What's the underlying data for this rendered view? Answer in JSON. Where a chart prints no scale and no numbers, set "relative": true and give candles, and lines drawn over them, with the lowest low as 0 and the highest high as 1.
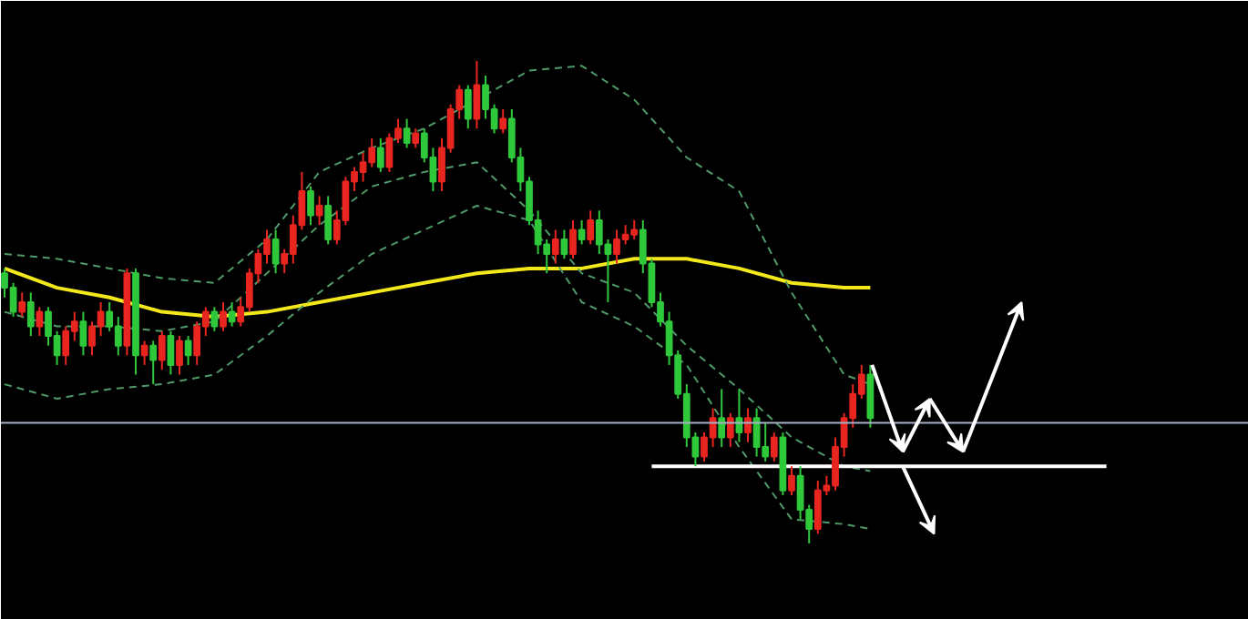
{
  "chart_data": {
    "type": "candlestick",
    "relative": true,
    "grid": false,
    "categories": [
      null,
      null,
      null,
      null,
      null,
      null,
      null,
      null,
      null,
      null,
      null,
      null,
      null,
      null,
      null,
      null,
      null,
      null,
      null,
      null,
      null,
      null,
      null,
      null,
      null,
      null,
      null,
      null,
      null,
      null,
      null,
      null,
      null,
      null,
      null,
      null,
      null,
      null,
      null,
      null,
      null,
      null,
      null,
      null,
      null,
      null,
      null,
      null,
      null,
      null,
      null,
      null,
      null,
      null,
      null,
      null,
      null,
      null,
      null,
      null,
      null,
      null,
      null,
      null,
      null,
      null,
      null,
      null,
      null,
      null,
      null,
      null,
      null,
      null,
      null,
      null,
      null,
      null,
      null,
      null,
      null,
      null,
      null,
      null,
      null,
      null,
      null,
      null,
      null,
      null,
      null,
      null,
      null,
      null,
      null,
      null,
      null,
      null,
      null,
      null,
      null,
      null,
      null,
      null,
      null,
      null,
      null,
      null,
      null,
      null,
      null,
      null,
      null,
      null,
      null,
      null,
      null,
      null,
      null,
      null,
      null,
      null,
      null,
      null,
      null,
      null,
      null,
      null,
      null,
      null,
      null,
      null,
      null,
      null,
      null,
      null,
      null,
      null,
      null,
      null,
      null,
      null,
      null
    ],
    "ohlc": [
      [
        0.56,
        0.57,
        0.51,
        0.53
      ],
      [
        0.53,
        0.54,
        0.47,
        0.48
      ],
      [
        0.48,
        0.52,
        0.47,
        0.5
      ],
      [
        0.5,
        0.52,
        0.43,
        0.45
      ],
      [
        0.45,
        0.49,
        0.43,
        0.48
      ],
      [
        0.48,
        0.49,
        0.41,
        0.43
      ],
      [
        0.43,
        0.44,
        0.37,
        0.39
      ],
      [
        0.39,
        0.45,
        0.37,
        0.44
      ],
      [
        0.44,
        0.48,
        0.42,
        0.46
      ],
      [
        0.46,
        0.48,
        0.39,
        0.41
      ],
      [
        0.41,
        0.46,
        0.39,
        0.45
      ],
      [
        0.45,
        0.5,
        0.43,
        0.48
      ],
      [
        0.48,
        0.5,
        0.44,
        0.45
      ],
      [
        0.45,
        0.47,
        0.39,
        0.41
      ],
      [
        0.41,
        0.57,
        0.39,
        0.56
      ],
      [
        0.56,
        0.57,
        0.35,
        0.39
      ],
      [
        0.39,
        0.42,
        0.37,
        0.41
      ],
      [
        0.41,
        0.42,
        0.33,
        0.38
      ],
      [
        0.38,
        0.44,
        0.36,
        0.43
      ],
      [
        0.43,
        0.44,
        0.35,
        0.37
      ],
      [
        0.37,
        0.43,
        0.35,
        0.42
      ],
      [
        0.42,
        0.43,
        0.37,
        0.39
      ],
      [
        0.39,
        0.46,
        0.37,
        0.45
      ],
      [
        0.45,
        0.49,
        0.43,
        0.48
      ],
      [
        0.48,
        0.49,
        0.44,
        0.45
      ],
      [
        0.45,
        0.5,
        0.44,
        0.48
      ],
      [
        0.48,
        0.5,
        0.45,
        0.46
      ],
      [
        0.46,
        0.51,
        0.45,
        0.49
      ],
      [
        0.49,
        0.57,
        0.48,
        0.56
      ],
      [
        0.56,
        0.61,
        0.54,
        0.6
      ],
      [
        0.6,
        0.65,
        0.58,
        0.63
      ],
      [
        0.63,
        0.65,
        0.56,
        0.58
      ],
      [
        0.58,
        0.61,
        0.56,
        0.6
      ],
      [
        0.6,
        0.68,
        0.58,
        0.66
      ],
      [
        0.66,
        0.77,
        0.65,
        0.73
      ],
      [
        0.73,
        0.74,
        0.66,
        0.68
      ],
      [
        0.68,
        0.72,
        0.66,
        0.7
      ],
      [
        0.7,
        0.72,
        0.62,
        0.63
      ],
      [
        0.63,
        0.69,
        0.62,
        0.67
      ],
      [
        0.67,
        0.76,
        0.66,
        0.75
      ],
      [
        0.75,
        0.78,
        0.73,
        0.77
      ],
      [
        0.77,
        0.81,
        0.75,
        0.79
      ],
      [
        0.79,
        0.84,
        0.78,
        0.82
      ],
      [
        0.82,
        0.84,
        0.77,
        0.78
      ],
      [
        0.78,
        0.85,
        0.77,
        0.84
      ],
      [
        0.84,
        0.88,
        0.83,
        0.86
      ],
      [
        0.86,
        0.88,
        0.82,
        0.83
      ],
      [
        0.83,
        0.86,
        0.82,
        0.85
      ],
      [
        0.85,
        0.86,
        0.79,
        0.8
      ],
      [
        0.8,
        0.82,
        0.73,
        0.75
      ],
      [
        0.75,
        0.84,
        0.73,
        0.82
      ],
      [
        0.82,
        0.91,
        0.81,
        0.9
      ],
      [
        0.9,
        0.95,
        0.88,
        0.94
      ],
      [
        0.94,
        0.95,
        0.86,
        0.88
      ],
      [
        0.88,
        1.0,
        0.86,
        0.95
      ],
      [
        0.95,
        0.97,
        0.88,
        0.9
      ],
      [
        0.9,
        0.91,
        0.85,
        0.86
      ],
      [
        0.86,
        0.9,
        0.85,
        0.88
      ],
      [
        0.88,
        0.9,
        0.79,
        0.8
      ],
      [
        0.8,
        0.82,
        0.73,
        0.75
      ],
      [
        0.75,
        0.76,
        0.66,
        0.67
      ],
      [
        0.67,
        0.69,
        0.6,
        0.62
      ],
      [
        0.62,
        0.63,
        0.56,
        0.6
      ],
      [
        0.6,
        0.65,
        0.58,
        0.63
      ],
      [
        0.63,
        0.65,
        0.59,
        0.6
      ],
      [
        0.6,
        0.67,
        0.59,
        0.65
      ],
      [
        0.65,
        0.67,
        0.62,
        0.63
      ],
      [
        0.63,
        0.69,
        0.62,
        0.67
      ],
      [
        0.67,
        0.69,
        0.6,
        0.62
      ],
      [
        0.62,
        0.63,
        0.5,
        0.6
      ],
      [
        0.6,
        0.65,
        0.58,
        0.63
      ],
      [
        0.63,
        0.66,
        0.62,
        0.64
      ],
      [
        0.64,
        0.67,
        0.63,
        0.65
      ],
      [
        0.65,
        0.67,
        0.56,
        0.58
      ],
      [
        0.58,
        0.59,
        0.49,
        0.5
      ],
      [
        0.5,
        0.52,
        0.45,
        0.46
      ],
      [
        0.46,
        0.48,
        0.37,
        0.39
      ],
      [
        0.39,
        0.4,
        0.3,
        0.31
      ],
      [
        0.31,
        0.33,
        0.2,
        0.22
      ],
      [
        0.22,
        0.23,
        0.16,
        0.18
      ],
      [
        0.18,
        0.23,
        0.17,
        0.22
      ],
      [
        0.22,
        0.28,
        0.2,
        0.26
      ],
      [
        0.26,
        0.32,
        0.2,
        0.22
      ],
      [
        0.22,
        0.27,
        0.2,
        0.26
      ],
      [
        0.26,
        0.32,
        0.21,
        0.23
      ],
      [
        0.23,
        0.28,
        0.21,
        0.26
      ],
      [
        0.26,
        0.28,
        0.18,
        0.2
      ],
      [
        0.2,
        0.25,
        0.17,
        0.18
      ],
      [
        0.18,
        0.23,
        0.17,
        0.22
      ],
      [
        0.22,
        0.23,
        0.1,
        0.11
      ],
      [
        0.11,
        0.16,
        0.1,
        0.14
      ],
      [
        0.14,
        0.16,
        0.05,
        0.07
      ],
      [
        0.07,
        0.08,
        0.0,
        0.03
      ],
      [
        0.03,
        0.13,
        0.02,
        0.11
      ],
      [
        0.11,
        0.14,
        0.1,
        0.12
      ],
      [
        0.12,
        0.22,
        0.11,
        0.2
      ],
      [
        0.2,
        0.27,
        0.18,
        0.26
      ],
      [
        0.26,
        0.33,
        0.24,
        0.31
      ],
      [
        0.31,
        0.37,
        0.3,
        0.35
      ],
      [
        0.35,
        0.37,
        0.24,
        0.26
      ],
      null,
      null,
      null,
      null,
      null,
      null,
      null,
      null,
      null,
      null,
      null,
      null,
      null,
      null,
      null,
      null,
      null,
      null,
      null,
      null,
      null,
      null,
      null,
      null,
      null,
      null,
      null,
      null,
      null,
      null,
      null,
      null,
      null,
      null,
      null,
      null,
      null,
      null,
      null,
      null,
      null,
      null,
      null
    ],
    "colors": [
      "#2fc83a",
      "#2fc83a",
      "#e8251f",
      "#2fc83a",
      "#e8251f",
      "#2fc83a",
      "#2fc83a",
      "#e8251f",
      "#e8251f",
      "#2fc83a",
      "#e8251f",
      "#e8251f",
      "#2fc83a",
      "#2fc83a",
      "#e8251f",
      "#2fc83a",
      "#e8251f",
      "#2fc83a",
      "#e8251f",
      "#2fc83a",
      "#e8251f",
      "#2fc83a",
      "#e8251f",
      "#e8251f",
      "#2fc83a",
      "#e8251f",
      "#2fc83a",
      "#e8251f",
      "#e8251f",
      "#e8251f",
      "#e8251f",
      "#2fc83a",
      "#e8251f",
      "#e8251f",
      "#e8251f",
      "#2fc83a",
      "#e8251f",
      "#2fc83a",
      "#e8251f",
      "#e8251f",
      "#e8251f",
      "#e8251f",
      "#e8251f",
      "#2fc83a",
      "#e8251f",
      "#e8251f",
      "#2fc83a",
      "#e8251f",
      "#2fc83a",
      "#2fc83a",
      "#e8251f",
      "#e8251f",
      "#e8251f",
      "#2fc83a",
      "#e8251f",
      "#2fc83a",
      "#2fc83a",
      "#e8251f",
      "#2fc83a",
      "#2fc83a",
      "#2fc83a",
      "#2fc83a",
      "#2fc83a",
      "#e8251f",
      "#2fc83a",
      "#e8251f",
      "#2fc83a",
      "#e8251f",
      "#2fc83a",
      "#2fc83a",
      "#e8251f",
      "#e8251f",
      "#e8251f",
      "#2fc83a",
      "#2fc83a",
      "#2fc83a",
      "#2fc83a",
      "#2fc83a",
      "#2fc83a",
      "#2fc83a",
      "#e8251f",
      "#e8251f",
      "#2fc83a",
      "#e8251f",
      "#2fc83a",
      "#e8251f",
      "#2fc83a",
      "#2fc83a",
      "#e8251f",
      "#2fc83a",
      "#e8251f",
      "#2fc83a",
      "#2fc83a",
      "#e8251f",
      "#e8251f",
      "#e8251f",
      "#e8251f",
      "#e8251f",
      "#e8251f",
      "#2fc83a",
      null,
      null,
      null,
      null,
      null,
      null,
      null,
      null,
      null,
      null,
      null,
      null,
      null,
      null,
      null,
      null,
      null,
      null,
      null,
      null,
      null,
      null,
      null,
      null,
      null,
      null,
      null,
      null,
      null,
      null,
      null,
      null,
      null,
      null,
      null,
      null,
      null,
      null,
      null,
      null,
      null,
      null,
      null
    ],
    "series": [
      {
        "type": "line",
        "color": "#f2e81c",
        "line_style": "solid",
        "values": [
          0.57,
          null,
          null,
          null,
          null,
          null,
          0.53,
          null,
          null,
          null,
          null,
          null,
          0.51,
          null,
          null,
          null,
          null,
          null,
          0.48,
          null,
          null,
          null,
          null,
          null,
          0.47,
          null,
          null,
          null,
          null,
          null,
          0.48,
          null,
          null,
          null,
          null,
          null,
          0.5,
          null,
          null,
          null,
          null,
          null,
          0.52,
          null,
          null,
          null,
          null,
          null,
          0.54,
          null,
          null,
          null,
          null,
          null,
          0.56,
          null,
          null,
          null,
          null,
          null,
          0.57,
          null,
          null,
          null,
          null,
          null,
          0.57,
          null,
          null,
          null,
          null,
          null,
          0.59,
          null,
          null,
          null,
          null,
          null,
          0.59,
          null,
          null,
          null,
          null,
          null,
          0.57,
          null,
          null,
          null,
          null,
          null,
          0.54,
          null,
          null,
          null,
          null,
          null,
          0.53,
          null,
          null,
          0.53,
          null,
          null,
          null,
          null,
          null,
          null,
          null,
          null,
          null,
          null,
          null,
          null,
          null,
          null,
          null,
          null,
          null,
          null,
          null,
          null,
          null,
          null,
          null,
          null,
          null,
          null,
          null,
          null,
          null,
          null,
          null,
          null,
          null,
          null,
          null,
          null,
          null,
          null,
          null,
          null,
          null,
          null,
          null
        ]
      },
      {
        "type": "line",
        "color": "#4f9a68",
        "line_style": "dashed",
        "values": [
          0.6,
          null,
          null,
          null,
          null,
          null,
          0.59,
          null,
          null,
          null,
          null,
          null,
          0.57,
          null,
          null,
          null,
          null,
          null,
          0.55,
          null,
          null,
          null,
          null,
          null,
          0.54,
          null,
          null,
          null,
          null,
          null,
          0.63,
          null,
          null,
          null,
          null,
          null,
          0.77,
          null,
          null,
          null,
          null,
          null,
          0.82,
          null,
          null,
          null,
          null,
          null,
          0.86,
          null,
          null,
          null,
          null,
          null,
          0.92,
          null,
          null,
          null,
          null,
          null,
          0.98,
          null,
          null,
          null,
          null,
          null,
          0.99,
          null,
          null,
          null,
          null,
          null,
          0.92,
          null,
          null,
          null,
          null,
          null,
          0.8,
          null,
          null,
          null,
          null,
          null,
          0.73,
          null,
          null,
          null,
          null,
          null,
          0.52,
          null,
          null,
          null,
          null,
          null,
          0.35,
          null,
          null,
          0.33,
          null,
          null,
          null,
          null,
          null,
          null,
          null,
          null,
          null,
          null,
          null,
          null,
          null,
          null,
          null,
          null,
          null,
          null,
          null,
          null,
          null,
          null,
          null,
          null,
          null,
          null,
          null,
          null,
          null,
          null,
          null,
          null,
          null,
          null,
          null,
          null,
          null,
          null,
          null,
          null,
          null,
          null,
          null
        ]
      },
      {
        "type": "line",
        "color": "#4f9a68",
        "line_style": "dashed",
        "values": [
          0.48,
          null,
          null,
          null,
          null,
          null,
          0.45,
          null,
          null,
          null,
          null,
          null,
          0.45,
          null,
          null,
          null,
          null,
          null,
          0.44,
          null,
          null,
          null,
          null,
          null,
          0.46,
          null,
          null,
          null,
          null,
          null,
          0.56,
          null,
          null,
          null,
          null,
          null,
          0.66,
          null,
          null,
          null,
          null,
          null,
          0.74,
          null,
          null,
          null,
          null,
          null,
          0.77,
          null,
          null,
          null,
          null,
          null,
          0.79,
          null,
          null,
          null,
          null,
          null,
          0.69,
          null,
          null,
          null,
          null,
          null,
          0.56,
          null,
          null,
          null,
          null,
          null,
          0.52,
          null,
          null,
          null,
          null,
          null,
          0.41,
          null,
          null,
          null,
          null,
          null,
          0.32,
          null,
          null,
          null,
          null,
          null,
          0.22,
          null,
          null,
          null,
          null,
          null,
          0.16,
          null,
          null,
          0.15,
          null,
          null,
          null,
          null,
          null,
          null,
          null,
          null,
          null,
          null,
          null,
          null,
          null,
          null,
          null,
          null,
          null,
          null,
          null,
          null,
          null,
          null,
          null,
          null,
          null,
          null,
          null,
          null,
          null,
          null,
          null,
          null,
          null,
          null,
          null,
          null,
          null,
          null,
          null,
          null,
          null,
          null,
          null
        ]
      },
      {
        "type": "line",
        "color": "#4f9a68",
        "line_style": "dashed",
        "values": [
          0.33,
          null,
          null,
          null,
          null,
          null,
          0.3,
          null,
          null,
          null,
          null,
          null,
          0.32,
          null,
          null,
          null,
          null,
          null,
          0.33,
          null,
          null,
          null,
          null,
          null,
          0.35,
          null,
          null,
          null,
          null,
          null,
          0.43,
          null,
          null,
          null,
          null,
          null,
          0.52,
          null,
          null,
          null,
          null,
          null,
          0.6,
          null,
          null,
          null,
          null,
          null,
          0.65,
          null,
          null,
          null,
          null,
          null,
          0.7,
          null,
          null,
          null,
          null,
          null,
          0.67,
          null,
          null,
          null,
          null,
          null,
          0.5,
          null,
          null,
          null,
          null,
          null,
          0.45,
          null,
          null,
          null,
          null,
          null,
          0.37,
          null,
          null,
          null,
          null,
          null,
          0.2,
          null,
          null,
          null,
          null,
          null,
          0.05,
          null,
          null,
          null,
          null,
          null,
          0.04,
          null,
          null,
          0.03,
          null,
          null,
          null,
          null,
          null,
          null,
          null,
          null,
          null,
          null,
          null,
          null,
          null,
          null,
          null,
          null,
          null,
          null,
          null,
          null,
          null,
          null,
          null,
          null,
          null,
          null,
          null,
          null,
          null,
          null,
          null,
          null,
          null,
          null,
          null,
          null,
          null,
          null,
          null,
          null,
          null,
          null,
          null
        ]
      },
      {
        "type": "line",
        "color": "#ffffff",
        "line_style": "solid",
        "values": [
          null,
          null,
          null,
          null,
          null,
          null,
          null,
          null,
          null,
          null,
          null,
          null,
          null,
          null,
          null,
          null,
          null,
          null,
          null,
          null,
          null,
          null,
          null,
          null,
          null,
          null,
          null,
          null,
          null,
          null,
          null,
          null,
          null,
          null,
          null,
          null,
          null,
          null,
          null,
          null,
          null,
          null,
          null,
          null,
          null,
          null,
          null,
          null,
          null,
          null,
          null,
          null,
          null,
          null,
          null,
          null,
          null,
          null,
          null,
          null,
          null,
          null,
          null,
          null,
          null,
          null,
          null,
          null,
          null,
          null,
          null,
          null,
          null,
          null,
          0.16,
          null,
          null,
          null,
          null,
          null,
          null,
          null,
          null,
          null,
          null,
          null,
          null,
          null,
          null,
          null,
          null,
          null,
          null,
          null,
          null,
          null,
          null,
          null,
          null,
          null,
          null,
          null,
          null,
          null,
          null,
          null,
          null,
          null,
          null,
          null,
          null,
          null,
          null,
          null,
          null,
          null,
          null,
          null,
          null,
          null,
          null,
          null,
          null,
          null,
          null,
          null,
          0.16,
          null,
          null,
          null,
          null,
          null,
          null,
          null,
          null,
          null,
          null,
          null,
          null,
          null,
          null,
          null,
          null
        ]
      }
    ],
    "ref_lines": [
      {
        "axis": "y",
        "value": 0.25,
        "color": "#a8b0c8"
      }
    ]
  }
}
